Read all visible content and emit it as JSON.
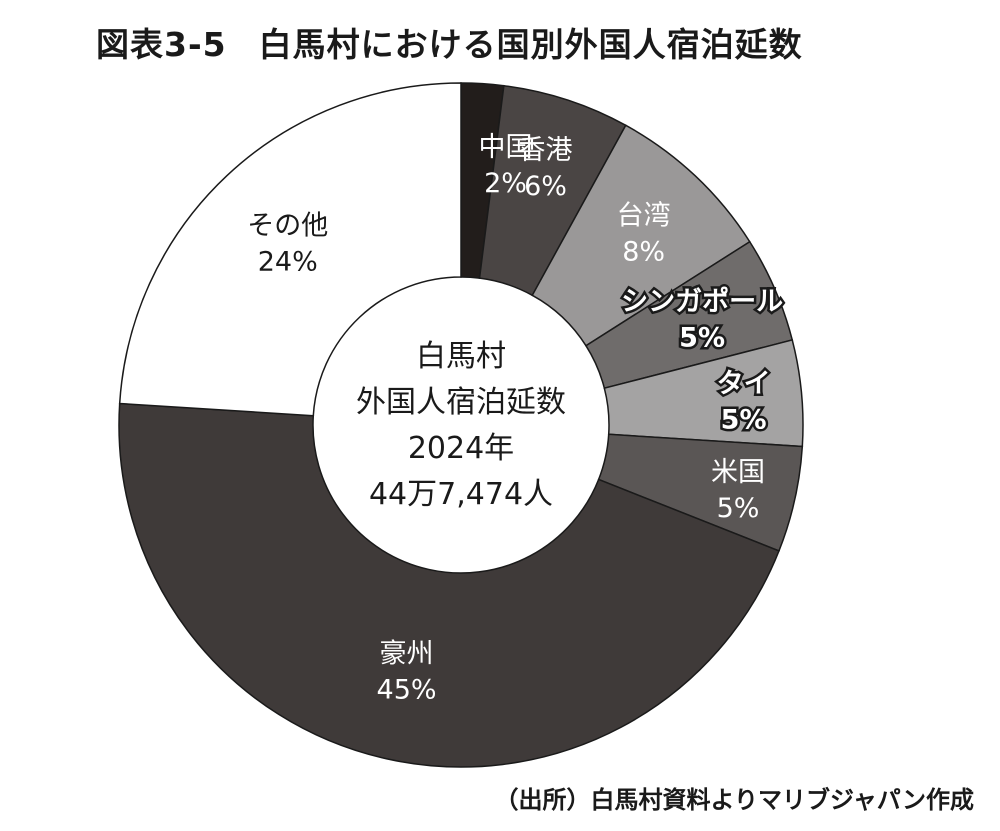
{
  "figure": {
    "number": "図表3-5",
    "title": "白馬村における国別外国人宿泊延数",
    "source": "（出所）白馬村資料よりマリブジャパン作成"
  },
  "chart_data": {
    "type": "pie",
    "donut": true,
    "center_text": [
      "白馬村",
      "外国人宿泊延数",
      "2024年",
      "44万7,474人"
    ],
    "slices": [
      {
        "name": "中国",
        "value": 2,
        "label": "2%",
        "color": "#221d1b"
      },
      {
        "name": "香港",
        "value": 6,
        "label": "6%",
        "color": "#4a4544"
      },
      {
        "name": "台湾",
        "value": 8,
        "label": "8%",
        "color": "#9a9898"
      },
      {
        "name": "シンガポール",
        "value": 5,
        "label": "5%",
        "color": "#6f6c6b"
      },
      {
        "name": "タイ",
        "value": 5,
        "label": "5%",
        "color": "#a4a3a3"
      },
      {
        "name": "米国",
        "value": 5,
        "label": "5%",
        "color": "#5a5655"
      },
      {
        "name": "豪州",
        "value": 45,
        "label": "45%",
        "color": "#3f3a39"
      },
      {
        "name": "その他",
        "value": 24,
        "label": "24%",
        "color": "#ffffff"
      }
    ]
  }
}
